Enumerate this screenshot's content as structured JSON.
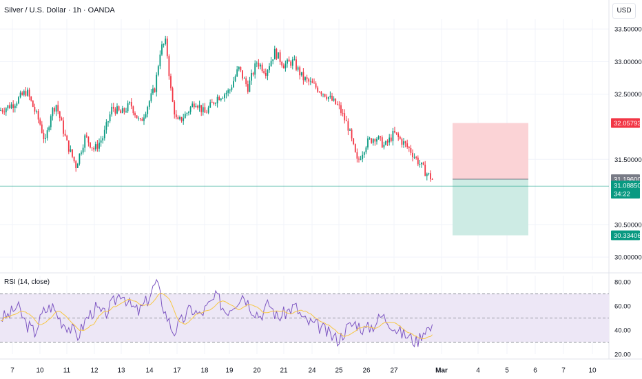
{
  "header": {
    "title": "Silver / U.S. Dollar · 1h · OANDA",
    "currency": "USD"
  },
  "colors": {
    "up": "#089981",
    "down": "#f23645",
    "rsi_line": "#7e57c2",
    "rsi_ma": "#f7c744",
    "rsi_band": "#ede7f6",
    "stop_zone": "#fbd3d6",
    "target_zone": "#cdebe4",
    "grid": "#f0f3fa"
  },
  "chart_data": [
    {
      "type": "candlestick",
      "title": "Silver / U.S. Dollar · 1h · OANDA",
      "ylim": [
        29.8,
        33.65
      ],
      "y_ticks": [
        "33.50000",
        "33.00000",
        "32.50000",
        "31.50000",
        "30.50000",
        "30.00000"
      ],
      "y_tick_values": [
        33.5,
        33.0,
        32.5,
        31.5,
        30.5,
        30.0
      ],
      "x_ticks": [
        "7",
        "10",
        "11",
        "12",
        "13",
        "14",
        "17",
        "18",
        "19",
        "20",
        "21",
        "24",
        "25",
        "26",
        "27",
        "Mar",
        "4",
        "5",
        "6",
        "7",
        "10"
      ],
      "close_path": [
        {
          "d": "7",
          "p": 32.25
        },
        {
          "d": "7",
          "p": 32.35
        },
        {
          "d": "7",
          "p": 32.55
        },
        {
          "d": "10",
          "p": 32.05
        },
        {
          "d": "10",
          "p": 31.75
        },
        {
          "d": "10",
          "p": 32.2
        },
        {
          "d": "10",
          "p": 32.35
        },
        {
          "d": "10",
          "p": 32.05
        },
        {
          "d": "11",
          "p": 31.75
        },
        {
          "d": "11",
          "p": 31.4
        },
        {
          "d": "11",
          "p": 31.85
        },
        {
          "d": "12",
          "p": 31.65
        },
        {
          "d": "12",
          "p": 31.85
        },
        {
          "d": "12",
          "p": 32.3
        },
        {
          "d": "13",
          "p": 32.2
        },
        {
          "d": "13",
          "p": 32.35
        },
        {
          "d": "13",
          "p": 32.05
        },
        {
          "d": "14",
          "p": 32.4
        },
        {
          "d": "14",
          "p": 32.6
        },
        {
          "d": "14",
          "p": 33.2
        },
        {
          "d": "14",
          "p": 33.3
        },
        {
          "d": "14",
          "p": 32.45
        },
        {
          "d": "17",
          "p": 32.05
        },
        {
          "d": "17",
          "p": 32.2
        },
        {
          "d": "17",
          "p": 32.4
        },
        {
          "d": "18",
          "p": 32.2
        },
        {
          "d": "18",
          "p": 32.45
        },
        {
          "d": "19",
          "p": 32.55
        },
        {
          "d": "19",
          "p": 32.9
        },
        {
          "d": "19",
          "p": 32.6
        },
        {
          "d": "20",
          "p": 33.0
        },
        {
          "d": "20",
          "p": 32.85
        },
        {
          "d": "20",
          "p": 33.15
        },
        {
          "d": "21",
          "p": 32.95
        },
        {
          "d": "21",
          "p": 33.0
        },
        {
          "d": "21",
          "p": 32.75
        },
        {
          "d": "24",
          "p": 32.65
        },
        {
          "d": "24",
          "p": 32.5
        },
        {
          "d": "25",
          "p": 32.3
        },
        {
          "d": "25",
          "p": 32.0
        },
        {
          "d": "25",
          "p": 31.45
        },
        {
          "d": "26",
          "p": 31.75
        },
        {
          "d": "26",
          "p": 31.85
        },
        {
          "d": "26",
          "p": 31.7
        },
        {
          "d": "27",
          "p": 31.9
        },
        {
          "d": "27",
          "p": 31.65
        },
        {
          "d": "27",
          "p": 31.3
        },
        {
          "d": "Mar",
          "p": 31.05
        },
        {
          "d": "Mar",
          "p": 31.0885
        }
      ],
      "last_price": "31.08850",
      "countdown": "34:22",
      "price_levels": [
        {
          "name": "stop",
          "label": "32.05793",
          "value": 32.05793
        },
        {
          "name": "entry",
          "label": "31.19600",
          "value": 31.196
        },
        {
          "name": "last",
          "label": "31.08850",
          "value": 31.0885
        },
        {
          "name": "target",
          "label": "30.33406",
          "value": 30.33406
        }
      ],
      "position": {
        "type": "short",
        "entry": 31.196,
        "stop": 32.05793,
        "target": 30.33406
      }
    },
    {
      "type": "line",
      "title": "RSI (14, close)",
      "ylim": [
        20,
        85
      ],
      "y_ticks": [
        "80.00",
        "60.00",
        "40.00",
        "20.00"
      ],
      "y_tick_values": [
        80,
        60,
        40,
        20
      ],
      "bands": {
        "upper": 70,
        "middle": 50,
        "lower": 30
      },
      "rsi_path": [
        50,
        52,
        60,
        45,
        38,
        55,
        60,
        48,
        42,
        35,
        50,
        58,
        52,
        62,
        72,
        60,
        55,
        65,
        80,
        55,
        38,
        48,
        58,
        52,
        60,
        68,
        55,
        62,
        70,
        58,
        52,
        62,
        50,
        55,
        60,
        48,
        45,
        42,
        36,
        32,
        42,
        46,
        40,
        44,
        52,
        46,
        38,
        35,
        30,
        42,
        40
      ]
    }
  ]
}
